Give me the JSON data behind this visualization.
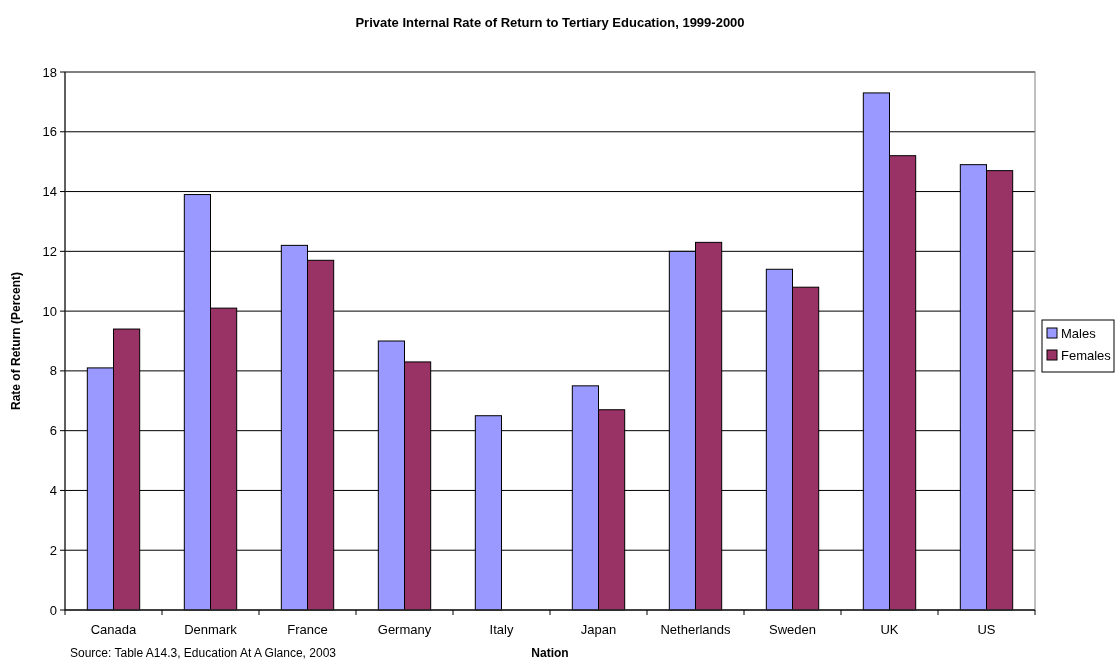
{
  "chart_data": {
    "type": "bar",
    "title": "Private Internal Rate of Return to Tertiary Education, 1999-2000",
    "xlabel": "Nation",
    "ylabel": "Rate of Return (Percent)",
    "categories": [
      "Canada",
      "Denmark",
      "France",
      "Germany",
      "Italy",
      "Japan",
      "Netherlands",
      "Sweden",
      "UK",
      "US"
    ],
    "series": [
      {
        "name": "Males",
        "color": "#9999ff",
        "values": [
          8.1,
          13.9,
          12.2,
          9.0,
          6.5,
          7.5,
          12.0,
          11.4,
          17.3,
          14.9
        ]
      },
      {
        "name": "Females",
        "color": "#993366",
        "values": [
          9.4,
          10.1,
          11.7,
          8.3,
          null,
          6.7,
          12.3,
          10.8,
          15.2,
          14.7
        ]
      }
    ],
    "ylim": [
      0,
      18
    ],
    "yticks": [
      0,
      2,
      4,
      6,
      8,
      10,
      12,
      14,
      16,
      18
    ],
    "grid": "y",
    "legend": "right",
    "annotations": [
      "Source: Table A14.3,  Education At A Glance, 2003"
    ]
  }
}
